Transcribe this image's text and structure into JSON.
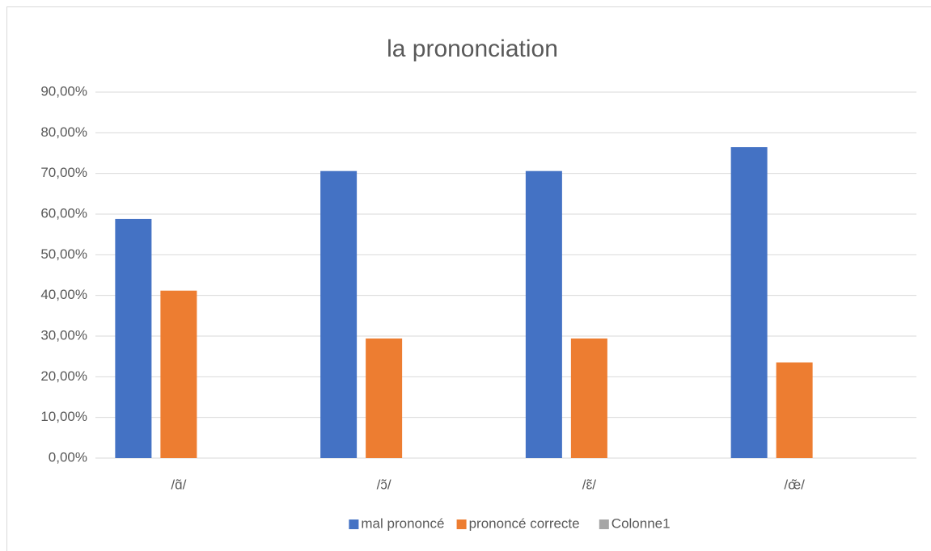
{
  "chart_data": {
    "type": "bar",
    "title": "la prononciation",
    "categories": [
      "/ɑ̃/",
      "/ɔ̃/",
      "/ɛ̃/",
      "/œ̃/"
    ],
    "series": [
      {
        "name": "mal prononcé",
        "color": "#4472c4",
        "values": [
          58.82,
          70.59,
          70.59,
          76.47
        ]
      },
      {
        "name": "prononcé correcte",
        "color": "#ed7d31",
        "values": [
          41.18,
          29.41,
          29.41,
          23.53
        ]
      },
      {
        "name": "Colonne1",
        "color": "#a5a5a5",
        "values": [
          null,
          null,
          null,
          null
        ]
      }
    ],
    "ylim": [
      0,
      90
    ],
    "yticks": [
      {
        "value": 0,
        "label": "0,00%"
      },
      {
        "value": 10,
        "label": "10,00%"
      },
      {
        "value": 20,
        "label": "20,00%"
      },
      {
        "value": 30,
        "label": "30,00%"
      },
      {
        "value": 40,
        "label": "40,00%"
      },
      {
        "value": 50,
        "label": "50,00%"
      },
      {
        "value": 60,
        "label": "60,00%"
      },
      {
        "value": 70,
        "label": "70,00%"
      },
      {
        "value": 80,
        "label": "80,00%"
      },
      {
        "value": 90,
        "label": "90,00%"
      }
    ],
    "grid": true,
    "legend": "bottom"
  }
}
